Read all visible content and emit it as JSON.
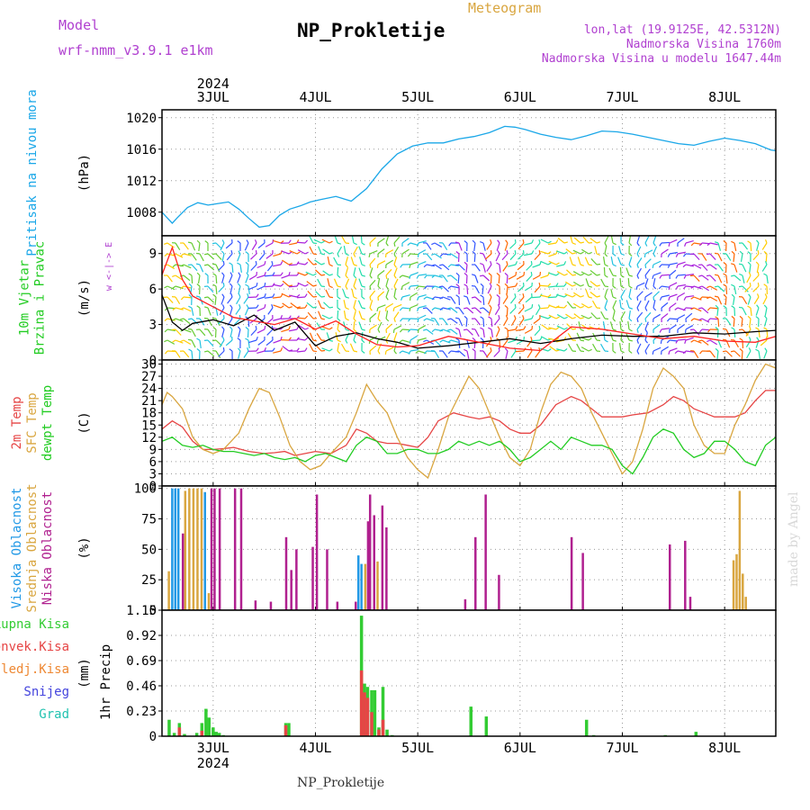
{
  "header": {
    "model_label": "Model",
    "model_name": "wrf-nmm_v3.9.1  e1km",
    "meteogram_label": "Meteogram",
    "station_title": "NP_Prokletije",
    "lonlat": "lon,lat (19.9125E, 42.5312N)",
    "altitude": "Nadmorska Visina 1760m",
    "model_altitude": "Nadmorska Visina u modelu 1647.44m",
    "footer_title": "NP_Prokletije",
    "credit": "made by Angel"
  },
  "colors": {
    "pressure": "#1aa7e8",
    "temp2m": "#e64545",
    "sfc_temp": "#d9a640",
    "dewpoint": "#22cc22",
    "high_cloud": "#2299e6",
    "mid_cloud": "#d9a640",
    "low_cloud": "#b0208f",
    "total_precip": "#33cc33",
    "conv_precip": "#e64545",
    "frozen_precip": "#ee8833",
    "snow": "#4444dd",
    "graupel": "#22c2b0",
    "header_purple": "#b040d0",
    "wind_black": "#000000",
    "wind_red": "#ff2222"
  },
  "chart_data": {
    "type": "meteogram",
    "year_label": "2024",
    "days": [
      "3JUL",
      "4JUL",
      "5JUL",
      "6JUL",
      "7JUL",
      "8JUL"
    ],
    "x_range_days": [
      2.5,
      8.5
    ],
    "panels": [
      {
        "id": "pressure",
        "type": "line",
        "ylabel_lines": [
          "Pritisak na nivou mora"
        ],
        "unit": "(hPa)",
        "ylim": [
          1005,
          1021
        ],
        "yticks": [
          1008,
          1012,
          1016,
          1020
        ],
        "series": [
          {
            "color_key": "pressure",
            "x": [
              2.5,
              2.55,
              2.6,
              2.65,
              2.75,
              2.85,
              2.95,
              3.05,
              3.15,
              3.25,
              3.35,
              3.45,
              3.55,
              3.65,
              3.75,
              3.85,
              3.95,
              4.05,
              4.2,
              4.35,
              4.5,
              4.65,
              4.8,
              4.95,
              5.1,
              5.25,
              5.4,
              5.55,
              5.7,
              5.85,
              5.95,
              6.05,
              6.2,
              6.35,
              6.5,
              6.65,
              6.8,
              6.95,
              7.1,
              7.25,
              7.4,
              7.55,
              7.7,
              7.85,
              8.0,
              8.15,
              8.3,
              8.45,
              8.5
            ],
            "y": [
              1008,
              1007.3,
              1006.6,
              1007.3,
              1008.6,
              1009.2,
              1008.9,
              1009.1,
              1009.3,
              1008.4,
              1007.2,
              1006.1,
              1006.3,
              1007.6,
              1008.4,
              1008.8,
              1009.3,
              1009.6,
              1010.0,
              1009.4,
              1011.0,
              1013.5,
              1015.4,
              1016.4,
              1016.8,
              1016.8,
              1017.3,
              1017.6,
              1018.1,
              1018.9,
              1018.8,
              1018.5,
              1017.9,
              1017.5,
              1017.2,
              1017.7,
              1018.3,
              1018.2,
              1017.9,
              1017.5,
              1017.1,
              1016.7,
              1016.5,
              1017.0,
              1017.4,
              1017.1,
              1016.7,
              1015.9,
              1015.8
            ]
          }
        ]
      },
      {
        "id": "wind",
        "type": "barbs",
        "ylabel_lines": [
          "10m Vjetar",
          "Brzina i Pravac"
        ],
        "unit": "(m/s)",
        "compass": "w <-|-> E",
        "ylim": [
          0,
          10.5
        ],
        "yticks": [
          0,
          3,
          6,
          9
        ],
        "series": [
          {
            "name": "speed",
            "color_key": "wind_black",
            "x": [
              2.5,
              2.6,
              2.7,
              2.8,
              3.0,
              3.2,
              3.4,
              3.6,
              3.8,
              4.0,
              4.2,
              4.4,
              4.6,
              4.8,
              5.0,
              5.3,
              5.6,
              5.9,
              6.2,
              6.5,
              6.8,
              7.1,
              7.4,
              7.7,
              8.0,
              8.3,
              8.5
            ],
            "y": [
              5.5,
              3.2,
              2.5,
              3.1,
              3.4,
              2.9,
              3.8,
              2.5,
              3.2,
              1.2,
              2.0,
              2.3,
              1.8,
              1.5,
              1.0,
              1.2,
              1.5,
              1.8,
              1.4,
              1.8,
              2.1,
              2.0,
              2.0,
              2.3,
              2.2,
              2.4,
              2.5
            ]
          },
          {
            "name": "gust",
            "color_key": "wind_red",
            "x": [
              2.5,
              2.6,
              2.7,
              2.8,
              3.0,
              3.2,
              3.4,
              3.6,
              3.8,
              4.0,
              4.2,
              4.4,
              4.6,
              4.8,
              5.0,
              5.3,
              5.6,
              5.9,
              6.2,
              6.5,
              6.8,
              7.1,
              7.4,
              7.7,
              8.0,
              8.3,
              8.5
            ],
            "y": [
              7.2,
              9.5,
              6.8,
              5.4,
              4.5,
              3.6,
              3.3,
              3.0,
              3.5,
              2.6,
              3.3,
              2.2,
              1.3,
              1.1,
              1.2,
              2.0,
              1.5,
              1.0,
              0.8,
              2.8,
              2.6,
              2.2,
              1.8,
              2.0,
              1.6,
              1.5,
              2.0
            ]
          }
        ]
      },
      {
        "id": "temperature",
        "type": "line",
        "ylabel_lines": [
          "2m Temp",
          "SFC Temp",
          "dewpt Temp"
        ],
        "unit": "(C)",
        "ylim": [
          0,
          31
        ],
        "yticks": [
          0,
          3,
          6,
          9,
          12,
          15,
          18,
          21,
          24,
          27,
          30
        ],
        "series": [
          {
            "name": "2m Temp",
            "color_key": "temp2m",
            "x": [
              2.5,
              2.6,
              2.7,
              2.8,
              2.9,
              3.0,
              3.1,
              3.2,
              3.35,
              3.5,
              3.6,
              3.7,
              3.8,
              3.9,
              4.0,
              4.15,
              4.3,
              4.4,
              4.5,
              4.6,
              4.7,
              4.8,
              4.9,
              5.0,
              5.1,
              5.2,
              5.35,
              5.5,
              5.6,
              5.7,
              5.8,
              5.9,
              6.0,
              6.1,
              6.2,
              6.35,
              6.5,
              6.6,
              6.7,
              6.8,
              6.9,
              7.0,
              7.1,
              7.25,
              7.4,
              7.5,
              7.6,
              7.7,
              7.8,
              7.9,
              8.0,
              8.1,
              8.2,
              8.3,
              8.4,
              8.5
            ],
            "y": [
              14,
              16,
              14.5,
              11,
              9,
              9,
              9.2,
              9.5,
              8.5,
              8,
              8.2,
              8.5,
              7.5,
              8,
              8.5,
              8,
              10,
              14,
              13,
              11,
              10.5,
              10.5,
              10,
              9.5,
              12,
              16,
              18,
              17,
              16.5,
              17,
              16,
              14,
              13,
              13,
              15,
              20,
              22,
              21,
              19,
              17,
              17,
              17,
              17.5,
              18,
              20,
              22,
              21,
              19,
              18,
              17,
              17,
              17,
              18,
              21,
              23.5,
              23.5
            ]
          },
          {
            "name": "SFC Temp",
            "color_key": "sfc_temp",
            "x": [
              2.5,
              2.55,
              2.6,
              2.7,
              2.8,
              2.9,
              3.0,
              3.1,
              3.25,
              3.35,
              3.45,
              3.55,
              3.65,
              3.75,
              3.85,
              3.95,
              4.05,
              4.15,
              4.3,
              4.4,
              4.5,
              4.6,
              4.7,
              4.8,
              4.9,
              5.0,
              5.1,
              5.2,
              5.3,
              5.4,
              5.5,
              5.6,
              5.7,
              5.8,
              5.9,
              6.0,
              6.1,
              6.2,
              6.3,
              6.4,
              6.5,
              6.6,
              6.7,
              6.8,
              6.9,
              7.0,
              7.1,
              7.2,
              7.3,
              7.4,
              7.5,
              7.6,
              7.7,
              7.8,
              7.9,
              8.0,
              8.1,
              8.2,
              8.3,
              8.4,
              8.5
            ],
            "y": [
              20,
              23,
              22,
              19,
              12,
              9,
              8,
              9,
              13,
              19,
              24,
              23,
              17,
              10,
              6,
              4,
              5,
              8,
              12,
              18,
              25,
              21,
              18,
              12,
              7,
              4,
              2,
              9,
              17,
              22,
              27,
              24,
              18,
              12,
              7,
              5,
              9,
              18,
              25,
              28,
              27,
              24,
              18,
              13,
              8,
              3,
              6,
              14,
              24,
              29,
              27,
              24,
              15,
              10,
              8,
              8,
              15,
              20,
              26,
              30,
              29
            ]
          },
          {
            "name": "dewpt Temp",
            "color_key": "dewpoint",
            "x": [
              2.5,
              2.6,
              2.7,
              2.8,
              2.9,
              3.0,
              3.1,
              3.2,
              3.3,
              3.4,
              3.5,
              3.6,
              3.7,
              3.8,
              3.9,
              4.0,
              4.1,
              4.2,
              4.3,
              4.4,
              4.5,
              4.6,
              4.7,
              4.8,
              4.9,
              5.0,
              5.1,
              5.2,
              5.3,
              5.4,
              5.5,
              5.6,
              5.7,
              5.8,
              5.9,
              6.0,
              6.1,
              6.2,
              6.3,
              6.4,
              6.5,
              6.6,
              6.7,
              6.8,
              6.9,
              7.0,
              7.1,
              7.2,
              7.3,
              7.4,
              7.5,
              7.6,
              7.7,
              7.8,
              7.9,
              8.0,
              8.1,
              8.2,
              8.3,
              8.4,
              8.5
            ],
            "y": [
              11,
              12,
              10,
              9.5,
              10,
              9,
              8.5,
              8.5,
              8,
              7.5,
              8,
              7,
              6.5,
              7,
              6,
              7.5,
              8,
              7,
              6,
              10,
              12,
              11,
              8,
              8,
              9,
              9,
              8,
              8,
              9,
              11,
              10,
              11,
              10,
              11,
              9,
              6,
              7,
              9,
              11,
              9,
              12,
              11,
              10,
              10,
              9,
              5,
              3,
              7,
              12,
              14,
              13,
              9,
              7,
              8,
              11,
              11,
              9,
              6,
              5,
              10,
              12
            ]
          }
        ]
      },
      {
        "id": "clouds",
        "type": "bar",
        "ylabel_lines": [
          "Visoka Oblacnost",
          "Srednja Oblacnost",
          "Niska Oblacnost"
        ],
        "unit": "(%)",
        "ylim": [
          0,
          102
        ],
        "yticks": [
          0,
          25,
          50,
          75,
          100
        ],
        "bar_series": [
          {
            "name": "Visoka Oblacnost",
            "color_key": "high_cloud",
            "x": [
              2.6,
              2.63,
              2.66,
              2.92,
              4.42,
              4.45
            ],
            "y": [
              100,
              100,
              100,
              97,
              45,
              38
            ]
          },
          {
            "name": "Srednja Oblacnost",
            "color_key": "mid_cloud",
            "x": [
              2.56,
              2.72,
              2.76,
              2.8,
              2.84,
              2.88,
              2.95,
              4.48,
              4.6,
              8.08,
              8.11,
              8.14,
              8.17,
              8.2,
              8.24
            ],
            "y": [
              32,
              98,
              100,
              100,
              100,
              100,
              14,
              38,
              40,
              41,
              46,
              98,
              30,
              11,
              0
            ]
          },
          {
            "name": "Niska Oblacnost",
            "color_key": "low_cloud",
            "x": [
              2.69,
              2.97,
              3.0,
              3.05,
              3.2,
              3.26,
              3.4,
              3.55,
              3.7,
              3.75,
              3.8,
              3.96,
              4.0,
              4.1,
              4.2,
              4.38,
              4.5,
              4.52,
              4.56,
              4.64,
              4.68,
              5.45,
              5.55,
              5.65,
              5.78,
              6.49,
              6.6,
              7.45,
              7.6,
              7.65
            ],
            "y": [
              63,
              100,
              100,
              100,
              100,
              100,
              8,
              7,
              60,
              33,
              50,
              52,
              95,
              50,
              7,
              7,
              73,
              95,
              78,
              86,
              68,
              9,
              60,
              95,
              29,
              60,
              47,
              54,
              57,
              11
            ]
          }
        ]
      },
      {
        "id": "precipitation",
        "type": "bar",
        "ylabel_lines": [
          "1hr Precip"
        ],
        "unit": "(mm)",
        "legend": [
          "Ukupna Kisa",
          "Konvek.Kisa",
          "Zaledj.Kisa",
          "Snijeg",
          "Grad"
        ],
        "ylim": [
          0,
          1.15
        ],
        "yticks": [
          0,
          0.23,
          0.46,
          0.69,
          0.92,
          1.15
        ],
        "bar_series": [
          {
            "name": "Ukupna Kisa",
            "color_key": "total_precip",
            "x": [
              2.57,
              2.62,
              2.67,
              2.72,
              2.84,
              2.89,
              2.93,
              2.96,
              3.0,
              3.03,
              3.06,
              3.1,
              3.71,
              3.74,
              4.45,
              4.48,
              4.51,
              4.55,
              4.58,
              4.62,
              4.66,
              4.7,
              4.75,
              5.52,
              5.67,
              6.65,
              6.72,
              7.42,
              7.72
            ],
            "y": [
              0.15,
              0.03,
              0.12,
              0.02,
              0.03,
              0.12,
              0.25,
              0.17,
              0.08,
              0.04,
              0.03,
              0.01,
              0.12,
              0.12,
              1.1,
              0.48,
              0.45,
              0.42,
              0.42,
              0.08,
              0.45,
              0.06,
              0.01,
              0.27,
              0.18,
              0.15,
              0.01,
              0.01,
              0.04
            ]
          },
          {
            "name": "Konvek.Kisa",
            "color_key": "conv_precip",
            "x": [
              2.67,
              2.89,
              3.71,
              4.45,
              4.48,
              4.51,
              4.55,
              4.62,
              4.66
            ],
            "y": [
              0.08,
              0.05,
              0.1,
              0.6,
              0.4,
              0.35,
              0.22,
              0.06,
              0.15
            ]
          }
        ]
      }
    ]
  }
}
